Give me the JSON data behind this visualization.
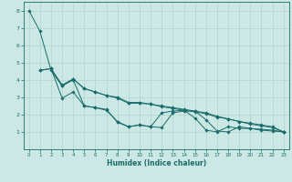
{
  "background_color": "#cce8e4",
  "grid_color": "#b0d4ce",
  "line_color": "#1a6b6b",
  "marker_color": "#1a6b6b",
  "xlabel": "Humidex (Indice chaleur)",
  "xlim": [
    -0.5,
    23.5
  ],
  "ylim": [
    0,
    8.5
  ],
  "xticks": [
    0,
    1,
    2,
    3,
    4,
    5,
    6,
    7,
    8,
    9,
    10,
    11,
    12,
    13,
    14,
    15,
    16,
    17,
    18,
    19,
    20,
    21,
    22,
    23
  ],
  "yticks": [
    1,
    2,
    3,
    4,
    5,
    6,
    7,
    8
  ],
  "series": [
    {
      "x": [
        0,
        1,
        2,
        3,
        4,
        5,
        6,
        7,
        8,
        9,
        10,
        11,
        12,
        13,
        14,
        15,
        16,
        17,
        18,
        19,
        20,
        21,
        22,
        23
      ],
      "y": [
        8.0,
        6.8,
        4.55,
        3.65,
        4.0,
        2.5,
        2.4,
        2.25,
        1.6,
        1.3,
        1.4,
        1.3,
        2.1,
        2.2,
        2.25,
        1.8,
        1.1,
        1.0,
        1.3,
        1.2,
        1.2,
        1.1,
        1.05,
        1.0
      ]
    },
    {
      "x": [
        1,
        2,
        3,
        4,
        5,
        6,
        7,
        8,
        9,
        10,
        11,
        12,
        13,
        14,
        15,
        16,
        17,
        18,
        19,
        20,
        21,
        22,
        23
      ],
      "y": [
        4.55,
        4.65,
        3.65,
        4.05,
        3.5,
        3.3,
        3.1,
        3.0,
        2.7,
        2.7,
        2.6,
        2.5,
        2.4,
        2.3,
        2.2,
        2.1,
        1.9,
        1.75,
        1.6,
        1.5,
        1.4,
        1.3,
        1.0
      ]
    },
    {
      "x": [
        1,
        2,
        3,
        4,
        5,
        6,
        7,
        8,
        9,
        10,
        11,
        12,
        13,
        14,
        15,
        16,
        17,
        18,
        19,
        20,
        21,
        22,
        23
      ],
      "y": [
        4.55,
        4.65,
        2.95,
        3.3,
        2.5,
        2.4,
        2.3,
        1.55,
        1.3,
        1.4,
        1.3,
        1.25,
        2.1,
        2.2,
        2.2,
        1.7,
        1.05,
        1.0,
        1.3,
        1.2,
        1.15,
        1.1,
        1.0
      ]
    },
    {
      "x": [
        2,
        3,
        4,
        5,
        6,
        7,
        8,
        9,
        10,
        11,
        12,
        13,
        14,
        15,
        16,
        17,
        18,
        19,
        20,
        21,
        22,
        23
      ],
      "y": [
        4.65,
        3.7,
        4.05,
        3.5,
        3.3,
        3.1,
        2.95,
        2.65,
        2.65,
        2.6,
        2.45,
        2.35,
        2.25,
        2.15,
        2.05,
        1.85,
        1.75,
        1.6,
        1.45,
        1.35,
        1.25,
        1.0
      ]
    }
  ]
}
